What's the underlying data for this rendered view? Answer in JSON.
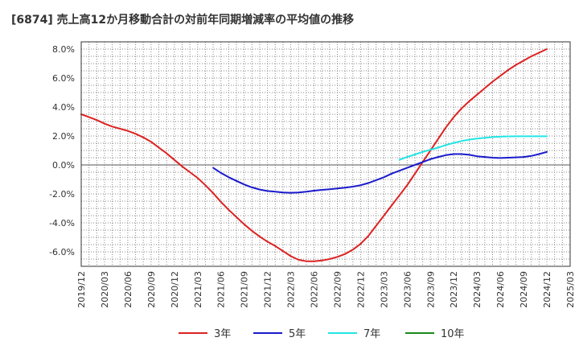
{
  "chart_data": {
    "type": "line",
    "title": "[6874]  売上高12か月移動合計の対前年同期増減率の平均値の推移",
    "ylim": [
      -7,
      8.5
    ],
    "y_ticks": [
      "8.0%",
      "6.0%",
      "4.0%",
      "2.0%",
      "0.0%",
      "-2.0%",
      "-4.0%",
      "-6.0%"
    ],
    "y_tick_values": [
      8,
      6,
      4,
      2,
      0,
      -2,
      -4,
      -6
    ],
    "x_labels": [
      "2019/12",
      "2020/03",
      "2020/06",
      "2020/09",
      "2020/12",
      "2021/03",
      "2021/06",
      "2021/09",
      "2021/12",
      "2022/03",
      "2022/06",
      "2022/09",
      "2022/12",
      "2023/03",
      "2023/06",
      "2023/09",
      "2023/12",
      "2024/03",
      "2024/06",
      "2024/09",
      "2024/12",
      "2025/03"
    ],
    "grid": true,
    "legend_position": "bottom",
    "series": [
      {
        "name": "3年",
        "color": "#dd2222",
        "x": [
          "2019/12",
          "2020/01",
          "2020/02",
          "2020/03",
          "2020/04",
          "2020/05",
          "2020/06",
          "2020/07",
          "2020/08",
          "2020/09",
          "2020/10",
          "2020/11",
          "2020/12",
          "2021/01",
          "2021/02",
          "2021/03",
          "2021/04",
          "2021/05",
          "2021/06",
          "2021/07",
          "2021/08",
          "2021/09",
          "2021/10",
          "2021/11",
          "2021/12",
          "2022/01",
          "2022/02",
          "2022/03",
          "2022/04",
          "2022/05",
          "2022/06",
          "2022/07",
          "2022/08",
          "2022/09",
          "2022/10",
          "2022/11",
          "2022/12",
          "2023/01",
          "2023/02",
          "2023/03",
          "2023/04",
          "2023/05",
          "2023/06",
          "2023/07",
          "2023/08",
          "2023/09",
          "2023/10",
          "2023/11",
          "2023/12",
          "2024/01",
          "2024/02",
          "2024/03",
          "2024/04",
          "2024/05",
          "2024/06",
          "2024/07",
          "2024/08",
          "2024/09",
          "2024/10",
          "2024/11",
          "2024/12"
        ],
        "values": [
          3.5,
          3.3,
          3.1,
          2.85,
          2.65,
          2.5,
          2.35,
          2.15,
          1.9,
          1.6,
          1.2,
          0.8,
          0.35,
          -0.1,
          -0.5,
          -0.9,
          -1.4,
          -1.95,
          -2.55,
          -3.1,
          -3.6,
          -4.1,
          -4.55,
          -4.95,
          -5.3,
          -5.6,
          -5.95,
          -6.3,
          -6.55,
          -6.65,
          -6.65,
          -6.6,
          -6.5,
          -6.35,
          -6.15,
          -5.85,
          -5.45,
          -4.9,
          -4.2,
          -3.5,
          -2.8,
          -2.1,
          -1.4,
          -0.6,
          0.2,
          1.0,
          1.8,
          2.6,
          3.3,
          3.9,
          4.4,
          4.85,
          5.3,
          5.75,
          6.15,
          6.55,
          6.9,
          7.2,
          7.5,
          7.75,
          8.0
        ]
      },
      {
        "name": "5年",
        "color": "#1a1acc",
        "x": [
          "2021/05",
          "2021/06",
          "2021/07",
          "2021/08",
          "2021/09",
          "2021/10",
          "2021/11",
          "2021/12",
          "2022/01",
          "2022/02",
          "2022/03",
          "2022/04",
          "2022/05",
          "2022/06",
          "2022/07",
          "2022/08",
          "2022/09",
          "2022/10",
          "2022/11",
          "2022/12",
          "2023/01",
          "2023/02",
          "2023/03",
          "2023/04",
          "2023/05",
          "2023/06",
          "2023/07",
          "2023/08",
          "2023/09",
          "2023/10",
          "2023/11",
          "2023/12",
          "2024/01",
          "2024/02",
          "2024/03",
          "2024/04",
          "2024/05",
          "2024/06",
          "2024/07",
          "2024/08",
          "2024/09",
          "2024/10",
          "2024/11",
          "2024/12"
        ],
        "values": [
          -0.2,
          -0.55,
          -0.85,
          -1.1,
          -1.35,
          -1.55,
          -1.7,
          -1.8,
          -1.85,
          -1.9,
          -1.92,
          -1.9,
          -1.85,
          -1.78,
          -1.72,
          -1.68,
          -1.63,
          -1.57,
          -1.5,
          -1.4,
          -1.25,
          -1.05,
          -0.85,
          -0.6,
          -0.4,
          -0.2,
          0.0,
          0.2,
          0.4,
          0.55,
          0.68,
          0.75,
          0.75,
          0.7,
          0.6,
          0.55,
          0.5,
          0.48,
          0.5,
          0.52,
          0.55,
          0.62,
          0.75,
          0.9
        ]
      },
      {
        "name": "7年",
        "color": "#22e5e5",
        "x": [
          "2023/05",
          "2023/06",
          "2023/07",
          "2023/08",
          "2023/09",
          "2023/10",
          "2023/11",
          "2023/12",
          "2024/01",
          "2024/02",
          "2024/03",
          "2024/04",
          "2024/05",
          "2024/06",
          "2024/07",
          "2024/08",
          "2024/09",
          "2024/10",
          "2024/11",
          "2024/12"
        ],
        "values": [
          0.35,
          0.55,
          0.72,
          0.9,
          1.05,
          1.2,
          1.38,
          1.52,
          1.65,
          1.75,
          1.82,
          1.87,
          1.92,
          1.95,
          1.97,
          1.98,
          1.98,
          1.98,
          1.98,
          1.98
        ]
      },
      {
        "name": "10年",
        "color": "#1a8a1a",
        "x": [],
        "values": []
      }
    ]
  }
}
